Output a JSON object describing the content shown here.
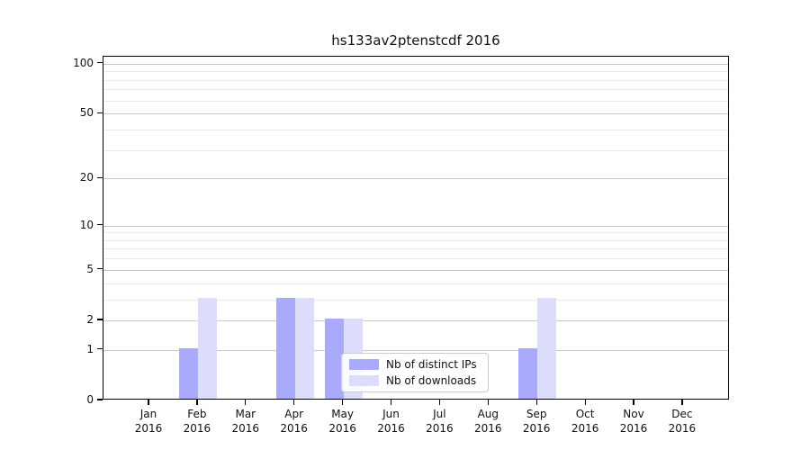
{
  "title": "hs133av2ptenstcdf 2016",
  "chart_data": {
    "type": "bar",
    "title": "hs133av2ptenstcdf 2016",
    "xlabel": "",
    "ylabel": "",
    "categories": [
      "Jan 2016",
      "Feb 2016",
      "Mar 2016",
      "Apr 2016",
      "May 2016",
      "Jun 2016",
      "Jul 2016",
      "Aug 2016",
      "Sep 2016",
      "Oct 2016",
      "Nov 2016",
      "Dec 2016"
    ],
    "x_tick_labels": [
      {
        "month": "Jan",
        "year": "2016"
      },
      {
        "month": "Feb",
        "year": "2016"
      },
      {
        "month": "Mar",
        "year": "2016"
      },
      {
        "month": "Apr",
        "year": "2016"
      },
      {
        "month": "May",
        "year": "2016"
      },
      {
        "month": "Jun",
        "year": "2016"
      },
      {
        "month": "Jul",
        "year": "2016"
      },
      {
        "month": "Aug",
        "year": "2016"
      },
      {
        "month": "Sep",
        "year": "2016"
      },
      {
        "month": "Oct",
        "year": "2016"
      },
      {
        "month": "Nov",
        "year": "2016"
      },
      {
        "month": "Dec",
        "year": "2016"
      }
    ],
    "series": [
      {
        "name": "Nb of distinct IPs",
        "color": "#aaaafa",
        "values": [
          0,
          1,
          0,
          3,
          2,
          0,
          0,
          0,
          1,
          0,
          0,
          0
        ]
      },
      {
        "name": "Nb of downloads",
        "color": "#dcdcfb",
        "values": [
          0,
          3,
          0,
          3,
          2,
          0,
          0,
          0,
          3,
          0,
          0,
          0
        ]
      }
    ],
    "yscale": "log1p",
    "yticks": [
      0,
      1,
      2,
      5,
      10,
      20,
      50,
      100
    ],
    "minor_gridlines": [
      3,
      4,
      6,
      7,
      8,
      9,
      30,
      40,
      60,
      70,
      80,
      90
    ],
    "ylim": [
      0,
      110
    ],
    "grid": true,
    "legend_position": "lower center-right inside plot"
  },
  "legend": {
    "items": [
      {
        "label": "Nb of distinct IPs",
        "color": "#aaaafa"
      },
      {
        "label": "Nb of downloads",
        "color": "#dcdcfb"
      }
    ]
  },
  "colors": {
    "distinct_ips": "#aaaafa",
    "downloads": "#dcdcfb",
    "grid_major": "#c9c9c9",
    "grid_minor": "#ececec",
    "axis": "#000000"
  }
}
